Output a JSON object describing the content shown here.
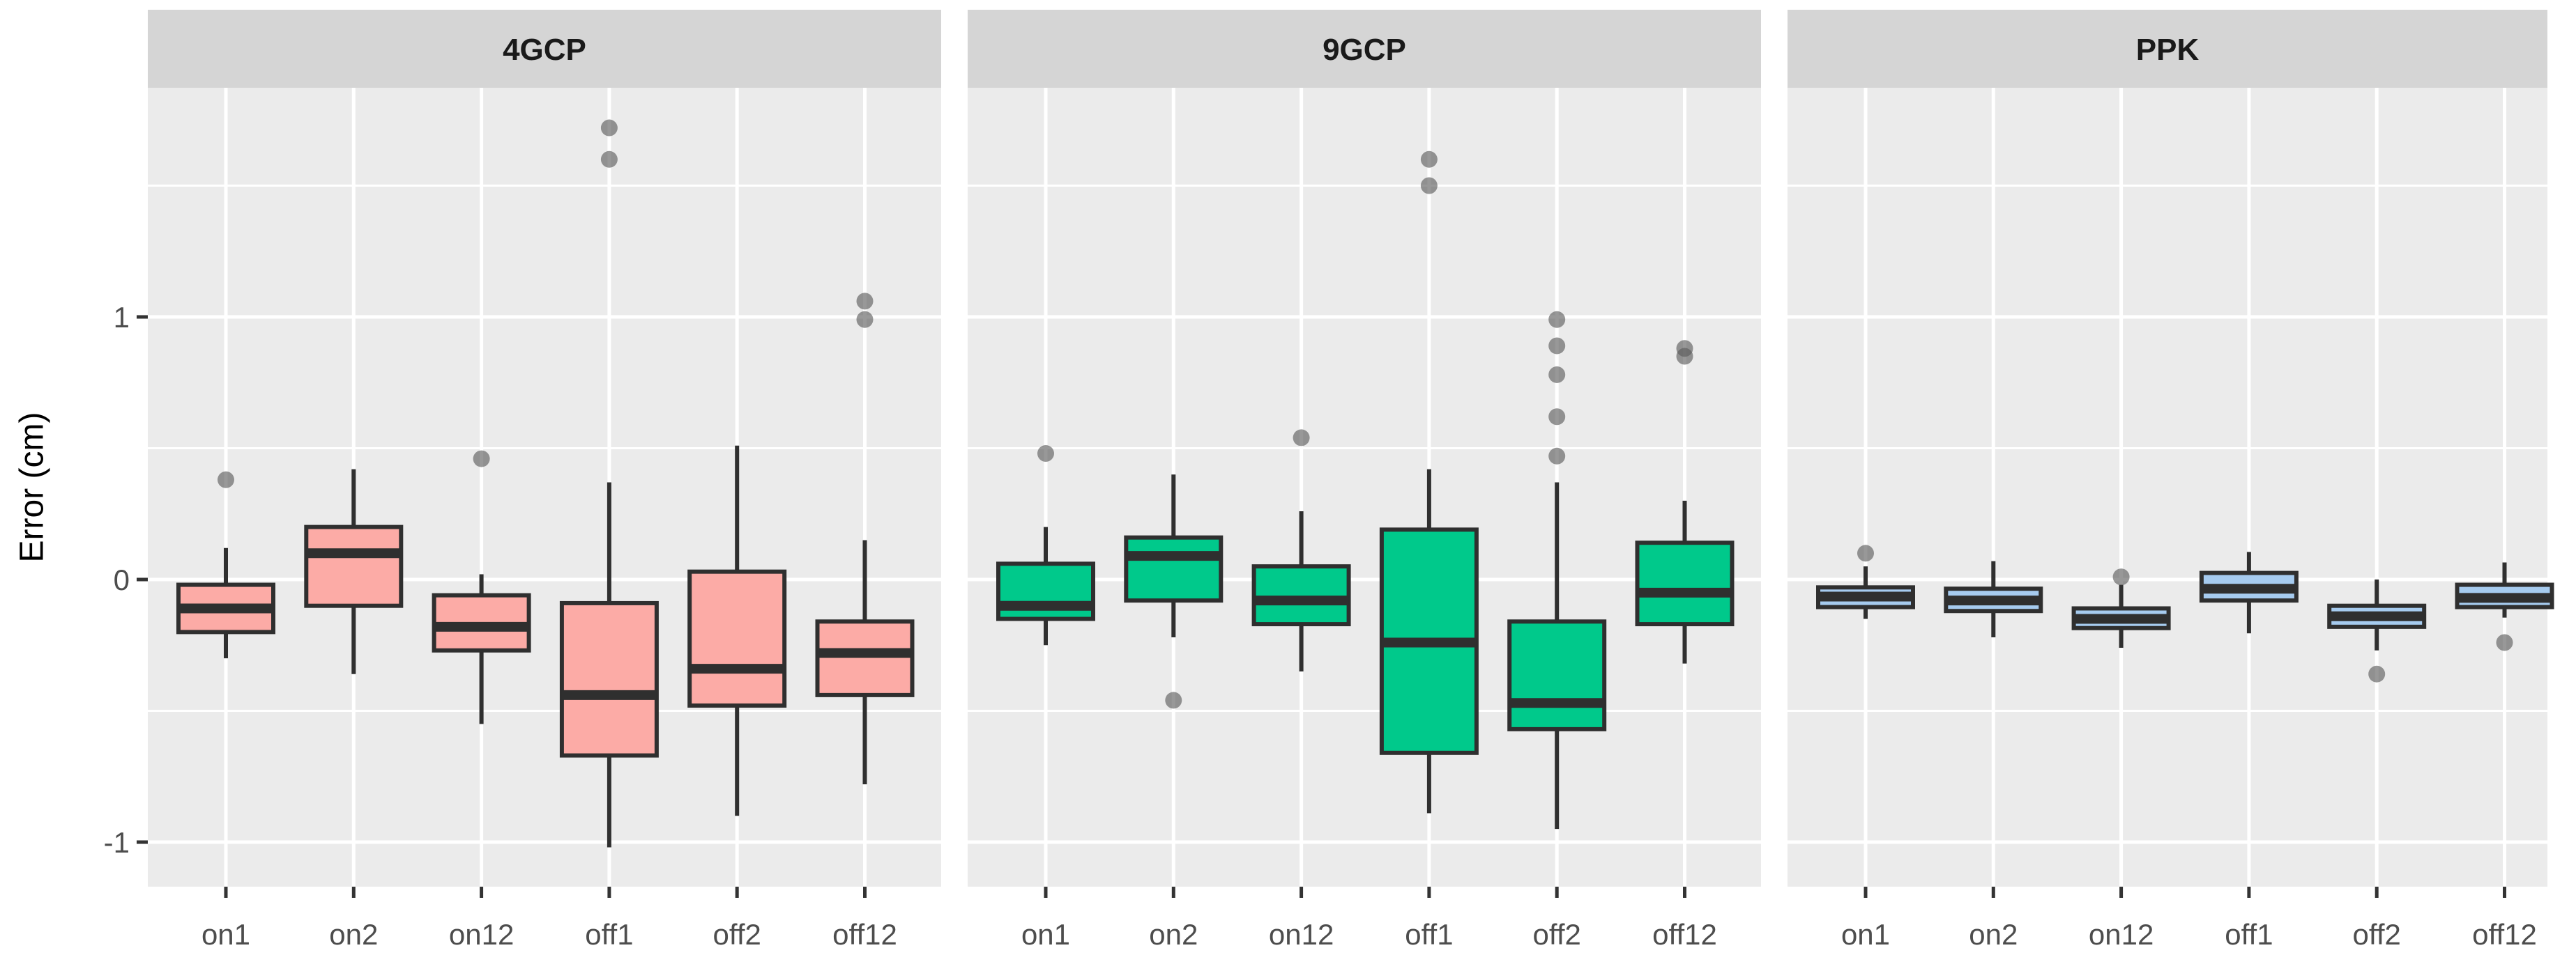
{
  "figure": {
    "kind": "faceted boxplot (ggplot2 style)",
    "y_axis_title": "Error (cm)"
  },
  "chart_data": {
    "type": "boxplot",
    "title": "",
    "ylabel": "Error (cm)",
    "xlabel": "",
    "categories": [
      "on1",
      "on2",
      "on12",
      "off1",
      "off2",
      "off12"
    ],
    "y_ticks": [
      {
        "value": 1,
        "label": "1"
      },
      {
        "value": 0,
        "label": "0"
      },
      {
        "value": -1,
        "label": "-1"
      }
    ],
    "y_minor_ticks": [
      1.5,
      0.5,
      -0.5
    ],
    "ylim": [
      -1.17,
      1.87
    ],
    "grid": "white major/minor gridlines on gray panel",
    "legend_position": "none",
    "colors": {
      "panel_background": "#EBEBEB",
      "strip_background": "#D5D5D5",
      "gridline": "#FFFFFF",
      "box_stroke": "#2F2F2F",
      "outlier_dot": "#595959",
      "tick_label": "#4D4D4D",
      "tick_mark": "#333333",
      "fill_4GCP": "#FCABA6",
      "fill_9GCP": "#00C98B",
      "fill_PPK": "#A6CBEF"
    },
    "facets": [
      {
        "label": "4GCP",
        "fill": "#FCABA6",
        "boxes": [
          {
            "category": "on1",
            "low": -0.3,
            "q1": -0.2,
            "median": -0.11,
            "q3": -0.02,
            "high": 0.12,
            "outliers": [
              0.38
            ]
          },
          {
            "category": "on2",
            "low": -0.36,
            "q1": -0.1,
            "median": 0.1,
            "q3": 0.2,
            "high": 0.42,
            "outliers": []
          },
          {
            "category": "on12",
            "low": -0.55,
            "q1": -0.27,
            "median": -0.18,
            "q3": -0.06,
            "high": 0.02,
            "outliers": [
              0.46
            ]
          },
          {
            "category": "off1",
            "low": -1.02,
            "q1": -0.67,
            "median": -0.44,
            "q3": -0.09,
            "high": 0.37,
            "outliers": [
              1.72,
              1.6
            ]
          },
          {
            "category": "off2",
            "low": -0.9,
            "q1": -0.48,
            "median": -0.34,
            "q3": 0.03,
            "high": 0.51,
            "outliers": []
          },
          {
            "category": "off12",
            "low": -0.78,
            "q1": -0.44,
            "median": -0.28,
            "q3": -0.16,
            "high": 0.15,
            "outliers": [
              1.06,
              0.99
            ]
          }
        ]
      },
      {
        "label": "9GCP",
        "fill": "#00C98B",
        "boxes": [
          {
            "category": "on1",
            "low": -0.25,
            "q1": -0.15,
            "median": -0.1,
            "q3": 0.06,
            "high": 0.2,
            "outliers": [
              0.48
            ]
          },
          {
            "category": "on2",
            "low": -0.22,
            "q1": -0.08,
            "median": 0.09,
            "q3": 0.16,
            "high": 0.4,
            "outliers": [
              -0.46
            ]
          },
          {
            "category": "on12",
            "low": -0.35,
            "q1": -0.17,
            "median": -0.08,
            "q3": 0.05,
            "high": 0.26,
            "outliers": [
              0.54
            ]
          },
          {
            "category": "off1",
            "low": -0.89,
            "q1": -0.66,
            "median": -0.24,
            "q3": 0.19,
            "high": 0.42,
            "outliers": [
              1.6,
              1.5
            ]
          },
          {
            "category": "off2",
            "low": -0.95,
            "q1": -0.57,
            "median": -0.47,
            "q3": -0.16,
            "high": 0.37,
            "outliers": [
              0.99,
              0.89,
              0.78,
              0.62,
              0.47
            ]
          },
          {
            "category": "off12",
            "low": -0.32,
            "q1": -0.17,
            "median": -0.05,
            "q3": 0.14,
            "high": 0.3,
            "outliers": [
              0.88,
              0.85
            ]
          }
        ]
      },
      {
        "label": "PPK",
        "fill": "#A6CBEF",
        "boxes": [
          {
            "category": "on1",
            "low": -0.15,
            "q1": -0.105,
            "median": -0.065,
            "q3": -0.03,
            "high": 0.05,
            "outliers": [
              0.1
            ]
          },
          {
            "category": "on2",
            "low": -0.22,
            "q1": -0.12,
            "median": -0.08,
            "q3": -0.035,
            "high": 0.07,
            "outliers": []
          },
          {
            "category": "on12",
            "low": -0.26,
            "q1": -0.185,
            "median": -0.15,
            "q3": -0.11,
            "high": -0.02,
            "outliers": [
              0.01
            ]
          },
          {
            "category": "off1",
            "low": -0.205,
            "q1": -0.08,
            "median": -0.035,
            "q3": 0.025,
            "high": 0.105,
            "outliers": []
          },
          {
            "category": "off2",
            "low": -0.27,
            "q1": -0.18,
            "median": -0.14,
            "q3": -0.1,
            "high": 0.0,
            "outliers": [
              -0.36
            ]
          },
          {
            "category": "off12",
            "low": -0.145,
            "q1": -0.105,
            "median": -0.07,
            "q3": -0.02,
            "high": 0.065,
            "outliers": [
              -0.24
            ]
          }
        ]
      }
    ]
  }
}
